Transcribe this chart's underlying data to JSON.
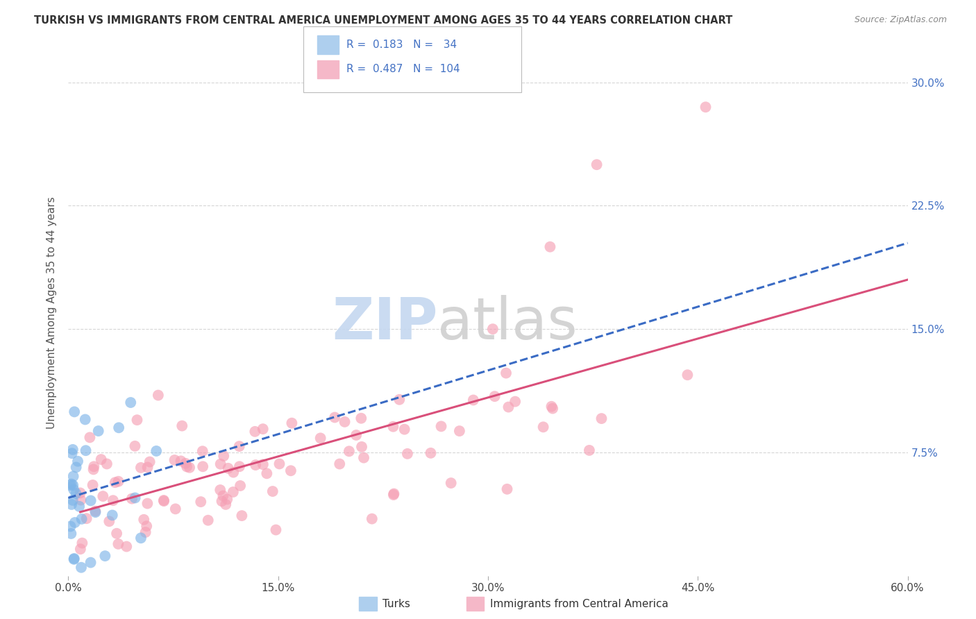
{
  "title": "TURKISH VS IMMIGRANTS FROM CENTRAL AMERICA UNEMPLOYMENT AMONG AGES 35 TO 44 YEARS CORRELATION CHART",
  "source": "Source: ZipAtlas.com",
  "ylabel": "Unemployment Among Ages 35 to 44 years",
  "xlim": [
    0.0,
    0.6
  ],
  "ylim": [
    0.0,
    0.32
  ],
  "xtick_labels": [
    "0.0%",
    "15.0%",
    "30.0%",
    "45.0%",
    "60.0%"
  ],
  "xtick_vals": [
    0.0,
    0.15,
    0.3,
    0.45,
    0.6
  ],
  "ytick_labels": [
    "7.5%",
    "15.0%",
    "22.5%",
    "30.0%"
  ],
  "ytick_vals": [
    0.075,
    0.15,
    0.225,
    0.3
  ],
  "turks_R": 0.183,
  "turks_N": 34,
  "ca_R": 0.487,
  "ca_N": 104,
  "turks_scatter_color": "#7eb5e8",
  "ca_scatter_color": "#f5a0b5",
  "turks_line_color": "#3a6bc4",
  "ca_line_color": "#d94f7a",
  "turks_legend_color": "#aecfee",
  "ca_legend_color": "#f5b8c8",
  "background_color": "#ffffff",
  "grid_color": "#cccccc",
  "title_color": "#333333",
  "source_color": "#888888",
  "axis_label_color": "#555555",
  "tick_color_right": "#4472c4",
  "watermark_zip_color": "#c5d8f0",
  "watermark_atlas_color": "#d0d0d0"
}
